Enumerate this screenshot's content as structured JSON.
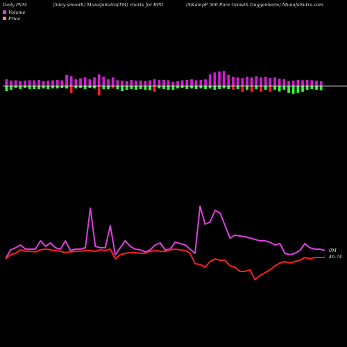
{
  "header": {
    "left": "Daily PVM",
    "middle": "(5day smooth) MunafaSutra(TM) charts for RPG",
    "right": "(S&ampP 500  Pure  Growth Guggenheim) MunafaSutra.com"
  },
  "legend": {
    "items": [
      {
        "label": "Volume",
        "color": "#e040e0"
      },
      {
        "label": "Price",
        "color": "#ff8c50"
      }
    ]
  },
  "colors": {
    "volume_line": "#e040e0",
    "price_line": "#ff2020",
    "bar_up": "#d020d0",
    "bar_down_red": "#ff2020",
    "bar_down_green": "#30ff30",
    "axis": "#ffffff"
  },
  "chart_data": [
    {
      "type": "bar",
      "title": "Daily PVM",
      "baseline": 0,
      "values": [
        0.35,
        0.28,
        0.3,
        0.25,
        0.28,
        0.3,
        0.3,
        0.32,
        0.25,
        0.28,
        0.3,
        0.32,
        0.3,
        0.58,
        0.5,
        0.35,
        0.4,
        0.45,
        0.35,
        0.45,
        0.6,
        0.48,
        0.35,
        0.45,
        0.3,
        0.28,
        0.25,
        0.32,
        0.28,
        0.28,
        0.25,
        0.3,
        0.35,
        0.32,
        0.32,
        0.3,
        0.22,
        0.25,
        0.3,
        0.32,
        0.35,
        0.3,
        0.32,
        0.35,
        0.6,
        0.7,
        0.75,
        0.78,
        0.58,
        0.48,
        0.45,
        0.42,
        0.48,
        0.45,
        0.5,
        0.45,
        0.48,
        0.42,
        0.45,
        0.38,
        0.35,
        0.25,
        0.28,
        0.32,
        0.3,
        0.32,
        0.3,
        0.28,
        0.25
      ],
      "neg": [
        -0.25,
        -0.2,
        -0.1,
        -0.15,
        -0.1,
        -0.15,
        -0.15,
        -0.15,
        -0.12,
        -0.15,
        -0.12,
        -0.12,
        -0.1,
        -0.12,
        -0.35,
        -0.12,
        -0.1,
        -0.15,
        -0.1,
        -0.12,
        -0.48,
        -0.15,
        -0.15,
        -0.12,
        -0.15,
        -0.25,
        -0.2,
        -0.15,
        -0.2,
        -0.15,
        -0.2,
        -0.22,
        -0.3,
        -0.12,
        -0.15,
        -0.2,
        -0.2,
        -0.12,
        -0.1,
        -0.15,
        -0.12,
        -0.15,
        -0.12,
        -0.15,
        -0.12,
        -0.2,
        -0.15,
        -0.12,
        -0.15,
        -0.2,
        -0.15,
        -0.3,
        -0.2,
        -0.3,
        -0.15,
        -0.3,
        -0.2,
        -0.3,
        -0.2,
        -0.28,
        -0.2,
        -0.35,
        -0.4,
        -0.35,
        -0.3,
        -0.2,
        -0.15,
        -0.2,
        -0.22
      ],
      "neg_color": [
        "g",
        "g",
        "g",
        "g",
        "g",
        "g",
        "g",
        "g",
        "g",
        "g",
        "g",
        "g",
        "g",
        "g",
        "r",
        "g",
        "g",
        "g",
        "g",
        "g",
        "r",
        "g",
        "g",
        "r",
        "g",
        "g",
        "g",
        "g",
        "g",
        "g",
        "g",
        "g",
        "r",
        "g",
        "g",
        "g",
        "g",
        "g",
        "g",
        "g",
        "g",
        "g",
        "g",
        "g",
        "g",
        "g",
        "g",
        "g",
        "g",
        "r",
        "g",
        "r",
        "g",
        "r",
        "g",
        "r",
        "g",
        "r",
        "g",
        "g",
        "g",
        "g",
        "g",
        "g",
        "g",
        "g",
        "g",
        "g",
        "g"
      ]
    },
    {
      "type": "line",
      "series": [
        {
          "name": "Volume",
          "values": [
            0.22,
            0.35,
            0.38,
            0.42,
            0.36,
            0.36,
            0.36,
            0.48,
            0.4,
            0.45,
            0.38,
            0.36,
            0.48,
            0.34,
            0.36,
            0.36,
            0.38,
            0.95,
            0.4,
            0.38,
            0.38,
            0.7,
            0.28,
            0.38,
            0.48,
            0.4,
            0.36,
            0.35,
            0.32,
            0.35,
            0.42,
            0.45,
            0.35,
            0.36,
            0.46,
            0.44,
            0.42,
            0.36,
            0.3,
            0.98,
            0.72,
            0.75,
            0.92,
            0.88,
            0.7,
            0.52,
            0.56,
            0.55,
            0.54,
            0.52,
            0.5,
            0.48,
            0.48,
            0.46,
            0.42,
            0.44,
            0.3,
            0.28,
            0.3,
            0.34,
            0.44,
            0.38,
            0.36,
            0.36,
            0.34
          ]
        },
        {
          "name": "Price",
          "values": [
            0.22,
            0.28,
            0.3,
            0.35,
            0.33,
            0.33,
            0.32,
            0.35,
            0.36,
            0.35,
            0.34,
            0.33,
            0.31,
            0.32,
            0.33,
            0.33,
            0.34,
            0.34,
            0.33,
            0.35,
            0.34,
            0.36,
            0.22,
            0.28,
            0.3,
            0.31,
            0.31,
            0.3,
            0.3,
            0.33,
            0.34,
            0.33,
            0.33,
            0.35,
            0.36,
            0.35,
            0.34,
            0.3,
            0.15,
            0.14,
            0.1,
            0.18,
            0.22,
            0.2,
            0.2,
            0.12,
            0.1,
            0.04,
            0.04,
            0.06,
            -0.08,
            -0.02,
            0.02,
            0.06,
            0.12,
            0.16,
            0.18,
            0.16,
            0.18,
            0.2,
            0.24,
            0.22,
            0.24,
            0.24,
            0.24
          ]
        }
      ],
      "end_labels": [
        "0M",
        "46.74"
      ]
    }
  ]
}
